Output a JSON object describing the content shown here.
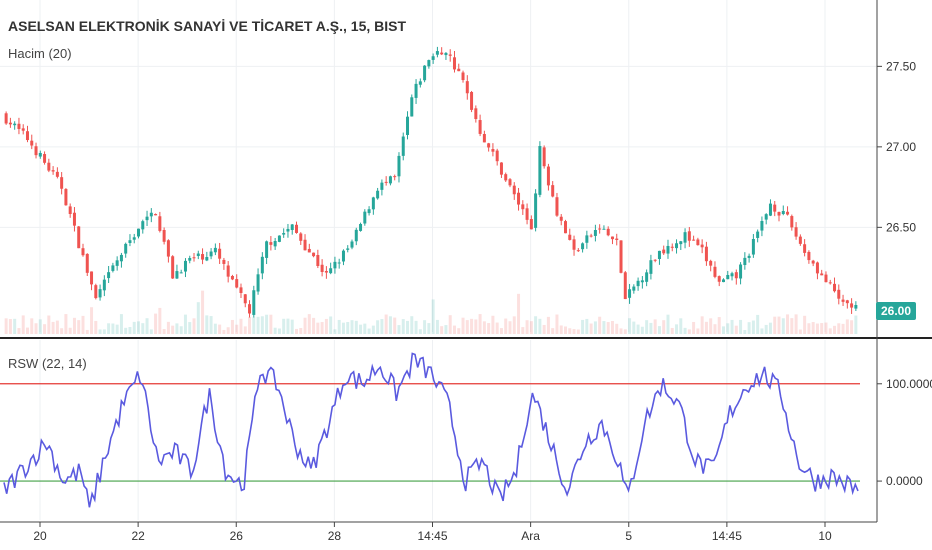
{
  "header": {
    "title": "ASELSAN ELEKTRONİK SANAYİ VE TİCARET A.Ş., 15, BIST",
    "volume_label": "Hacim (20)"
  },
  "indicator": {
    "label": "RSW (22, 14)"
  },
  "last_price": "26.00",
  "colors": {
    "up": "#26a69a",
    "down": "#ef5350",
    "rsw_line": "#5a5adf",
    "upper_band": "#e53935",
    "lower_band": "#43a047",
    "grid": "#eef0f3"
  },
  "chart_data": [
    {
      "type": "candlestick",
      "price_axis": {
        "ticks": [
          "27.50",
          "27.00",
          "26.50"
        ],
        "range": [
          25.85,
          27.85
        ]
      },
      "x_tick_labels": [
        "20",
        "22",
        "26",
        "28",
        "14:45",
        "Ara",
        "5",
        "14:45",
        "10"
      ],
      "price_path": [
        [
          0,
          27.2
        ],
        [
          0.03,
          27.05
        ],
        [
          0.05,
          26.9
        ],
        [
          0.07,
          26.75
        ],
        [
          0.09,
          26.4
        ],
        [
          0.11,
          26.05
        ],
        [
          0.13,
          26.25
        ],
        [
          0.16,
          26.5
        ],
        [
          0.18,
          26.6
        ],
        [
          0.2,
          26.2
        ],
        [
          0.22,
          26.3
        ],
        [
          0.25,
          26.35
        ],
        [
          0.27,
          26.15
        ],
        [
          0.29,
          25.98
        ],
        [
          0.31,
          26.4
        ],
        [
          0.34,
          26.5
        ],
        [
          0.36,
          26.35
        ],
        [
          0.38,
          26.2
        ],
        [
          0.41,
          26.4
        ],
        [
          0.44,
          26.75
        ],
        [
          0.46,
          26.8
        ],
        [
          0.48,
          27.3
        ],
        [
          0.5,
          27.55
        ],
        [
          0.52,
          27.6
        ],
        [
          0.54,
          27.4
        ],
        [
          0.56,
          27.1
        ],
        [
          0.58,
          26.9
        ],
        [
          0.6,
          26.7
        ],
        [
          0.62,
          26.5
        ],
        [
          0.63,
          26.98
        ],
        [
          0.65,
          26.6
        ],
        [
          0.67,
          26.35
        ],
        [
          0.7,
          26.5
        ],
        [
          0.72,
          26.4
        ],
        [
          0.73,
          26.05
        ],
        [
          0.75,
          26.2
        ],
        [
          0.77,
          26.35
        ],
        [
          0.8,
          26.45
        ],
        [
          0.82,
          26.35
        ],
        [
          0.84,
          26.15
        ],
        [
          0.86,
          26.2
        ],
        [
          0.88,
          26.4
        ],
        [
          0.9,
          26.65
        ],
        [
          0.92,
          26.55
        ],
        [
          0.94,
          26.35
        ],
        [
          0.96,
          26.2
        ],
        [
          0.98,
          26.05
        ],
        [
          1,
          26.0
        ]
      ]
    },
    {
      "type": "line",
      "series": [
        {
          "name": "RSW",
          "path": [
            [
              0,
              -10
            ],
            [
              0.03,
              20
            ],
            [
              0.05,
              40
            ],
            [
              0.07,
              0
            ],
            [
              0.09,
              10
            ],
            [
              0.1,
              -30
            ],
            [
              0.12,
              30
            ],
            [
              0.14,
              80
            ],
            [
              0.16,
              110
            ],
            [
              0.18,
              20
            ],
            [
              0.2,
              30
            ],
            [
              0.22,
              10
            ],
            [
              0.24,
              90
            ],
            [
              0.26,
              10
            ],
            [
              0.28,
              -5
            ],
            [
              0.3,
              115
            ],
            [
              0.32,
              100
            ],
            [
              0.34,
              40
            ],
            [
              0.36,
              10
            ],
            [
              0.38,
              60
            ],
            [
              0.4,
              110
            ],
            [
              0.42,
              100
            ],
            [
              0.44,
              120
            ],
            [
              0.46,
              90
            ],
            [
              0.48,
              125
            ],
            [
              0.5,
              110
            ],
            [
              0.52,
              80
            ],
            [
              0.54,
              0
            ],
            [
              0.56,
              20
            ],
            [
              0.58,
              -20
            ],
            [
              0.6,
              10
            ],
            [
              0.61,
              60
            ],
            [
              0.62,
              90
            ],
            [
              0.64,
              40
            ],
            [
              0.66,
              -10
            ],
            [
              0.68,
              40
            ],
            [
              0.7,
              60
            ],
            [
              0.72,
              20
            ],
            [
              0.73,
              -20
            ],
            [
              0.75,
              60
            ],
            [
              0.77,
              100
            ],
            [
              0.79,
              80
            ],
            [
              0.81,
              20
            ],
            [
              0.83,
              10
            ],
            [
              0.85,
              70
            ],
            [
              0.87,
              100
            ],
            [
              0.89,
              110
            ],
            [
              0.91,
              90
            ],
            [
              0.93,
              20
            ],
            [
              0.95,
              0
            ],
            [
              0.97,
              5
            ],
            [
              1,
              -10
            ]
          ]
        }
      ],
      "y_ticks": [
        "100.0000",
        "0.0000"
      ],
      "ylim": [
        -40,
        145
      ],
      "bands": [
        100,
        0
      ]
    }
  ]
}
